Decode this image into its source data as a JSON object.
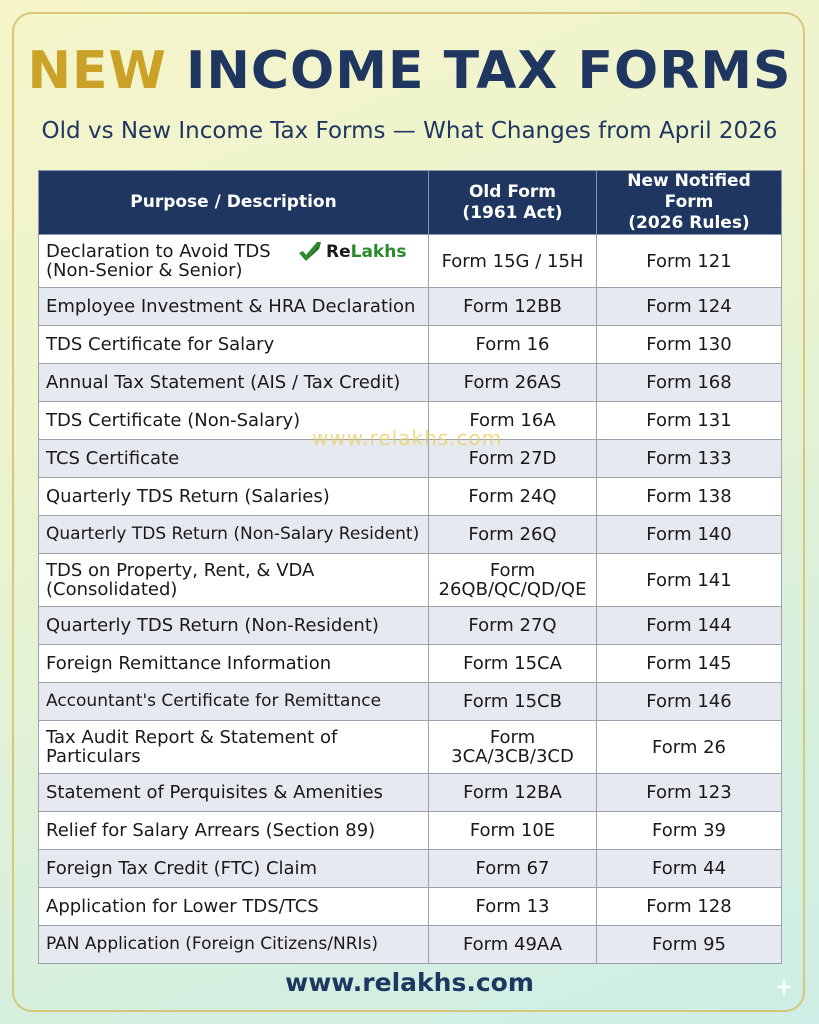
{
  "header": {
    "title_part1": "NEW",
    "title_part2": "INCOME TAX FORMS",
    "subtitle": "Old vs New Income Tax Forms — What Changes from April 2026"
  },
  "table": {
    "headers": {
      "purpose": "Purpose / Description",
      "old_line1": "Old Form",
      "old_line2": "(1961 Act)",
      "new_line1": "New Notified Form",
      "new_line2": "(2026 Rules)"
    },
    "rows": [
      {
        "purpose_line1": "Declaration to Avoid TDS",
        "purpose_line2": "(Non-Senior & Senior)",
        "old": "Form 15G / 15H",
        "new": "Form 121"
      },
      {
        "purpose": "Employee Investment & HRA Declaration",
        "old": "Form 12BB",
        "new": "Form 124"
      },
      {
        "purpose": "TDS Certificate for Salary",
        "old": "Form 16",
        "new": "Form 130"
      },
      {
        "purpose": "Annual Tax Statement (AIS / Tax Credit)",
        "old": "Form 26AS",
        "new": "Form 168"
      },
      {
        "purpose": "TDS Certificate (Non-Salary)",
        "old": "Form 16A",
        "new": "Form 131"
      },
      {
        "purpose": "TCS Certificate",
        "old": "Form 27D",
        "new": "Form 133"
      },
      {
        "purpose": "Quarterly TDS Return (Salaries)",
        "old": "Form 24Q",
        "new": "Form 138"
      },
      {
        "purpose": "Quarterly TDS Return (Non-Salary Resident)",
        "old": "Form 26Q",
        "new": "Form 140"
      },
      {
        "purpose_line1": "TDS on Property, Rent, & VDA",
        "purpose_line2": "(Consolidated)",
        "old_line1": "Form",
        "old_line2": "26QB/QC/QD/QE",
        "new": "Form 141"
      },
      {
        "purpose": "Quarterly TDS Return (Non-Resident)",
        "old": "Form 27Q",
        "new": "Form 144"
      },
      {
        "purpose": "Foreign Remittance Information",
        "old": "Form 15CA",
        "new": "Form 145"
      },
      {
        "purpose": "Accountant's Certificate for Remittance",
        "old": "Form 15CB",
        "new": "Form 146"
      },
      {
        "purpose_line1": "Tax Audit Report & Statement of",
        "purpose_line2": "Particulars",
        "old_line1": "Form",
        "old_line2": "3CA/3CB/3CD",
        "new": "Form 26"
      },
      {
        "purpose": "Statement of Perquisites & Amenities",
        "old": "Form 12BA",
        "new": "Form 123"
      },
      {
        "purpose": "Relief for Salary Arrears (Section 89)",
        "old": "Form 10E",
        "new": "Form 39"
      },
      {
        "purpose": "Foreign Tax Credit (FTC) Claim",
        "old": "Form 67",
        "new": "Form 44"
      },
      {
        "purpose": "Application for Lower TDS/TCS",
        "old": "Form 13",
        "new": "Form 128"
      },
      {
        "purpose": "PAN Application (Foreign Citizens/NRIs)",
        "old": "Form 49AA",
        "new": "Form 95"
      }
    ]
  },
  "logo": {
    "re": "Re",
    "lakhs": "Lakhs",
    "icon": "checkmark-leaf-icon"
  },
  "watermark": "www.relakhs.com",
  "footer": "www.relakhs.com",
  "colors": {
    "navy": "#1f3760",
    "gold": "#c9a227",
    "green": "#2b8a2b"
  }
}
